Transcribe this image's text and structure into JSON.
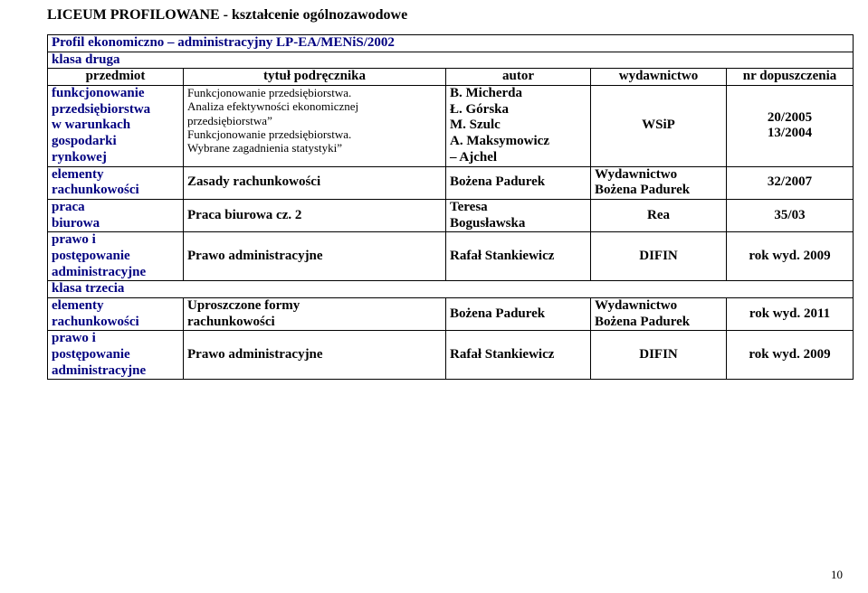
{
  "title": "LICEUM  PROFILOWANE  -  kształcenie ogólnozawodowe",
  "profileRow": "Profil ekonomiczno – administracyjny  LP-EA/MENiS/2002",
  "klasa2": "klasa  druga",
  "klasa3": "klasa  trzecia",
  "head": {
    "c1": "przedmiot",
    "c2": "tytuł podręcznika",
    "c3": "autor",
    "c4": "wydawnictwo",
    "c5": "nr dopuszczenia"
  },
  "r1": {
    "subject_l1": "funkcjonowanie",
    "subject_l2": "przedsiębiorstwa",
    "subject_l3": "w warunkach",
    "subject_l4": "gospodarki",
    "subject_l5": "rynkowej",
    "title_l1": "Funkcjonowanie przedsiębiorstwa.",
    "title_l2": "Analiza efektywności ekonomicznej",
    "title_l3": "przedsiębiorstwa”",
    "title_l4": "Funkcjonowanie przedsiębiorstwa.",
    "title_l5": "Wybrane zagadnienia statystyki”",
    "author_l1": "B. Micherda",
    "author_l2": "Ł. Górska",
    "author_l3": "M. Szulc",
    "author_l4": "A. Maksymowicz",
    "author_l5": "– Ajchel",
    "pub": "WSiP",
    "nr_l1": "20/2005",
    "nr_l2": "13/2004"
  },
  "r2": {
    "subject_l1": "elementy",
    "subject_l2": "rachunkowości",
    "title": "Zasady rachunkowości",
    "author": "Bożena Padurek",
    "pub_l1": "Wydawnictwo",
    "pub_l2": "Bożena Padurek",
    "nr": "32/2007"
  },
  "r3": {
    "subject_l1": "praca",
    "subject_l2": "biurowa",
    "title": "Praca biurowa cz. 2",
    "author_l1": "Teresa",
    "author_l2": "Bogusławska",
    "pub": "Rea",
    "nr": "35/03"
  },
  "r4": {
    "subject_l1": "prawo i",
    "subject_l2": "postępowanie",
    "subject_l3": "administracyjne",
    "title": "Prawo administracyjne",
    "author": "Rafał Stankiewicz",
    "pub": "DIFIN",
    "nr": "rok wyd. 2009"
  },
  "r5": {
    "subject_l1": "elementy",
    "subject_l2": "rachunkowości",
    "title_l1": "Uproszczone formy",
    "title_l2": "rachunkowości",
    "author": "Bożena Padurek",
    "pub_l1": "Wydawnictwo",
    "pub_l2": "Bożena Padurek",
    "nr": "rok wyd. 2011"
  },
  "r6": {
    "subject_l1": "prawo i",
    "subject_l2": "postępowanie",
    "subject_l3": "administracyjne",
    "title": "Prawo administracyjne",
    "author": "Rafał Stankiewicz",
    "pub": "DIFIN",
    "nr": "rok wyd. 2009"
  },
  "pagenum": "10",
  "colors": {
    "navy": "#000080",
    "black": "#000000",
    "bg": "#ffffff"
  },
  "typography": {
    "font_family": "Times New Roman",
    "base_pt": 12,
    "title_pt": 12.5,
    "small_pt": 10
  }
}
